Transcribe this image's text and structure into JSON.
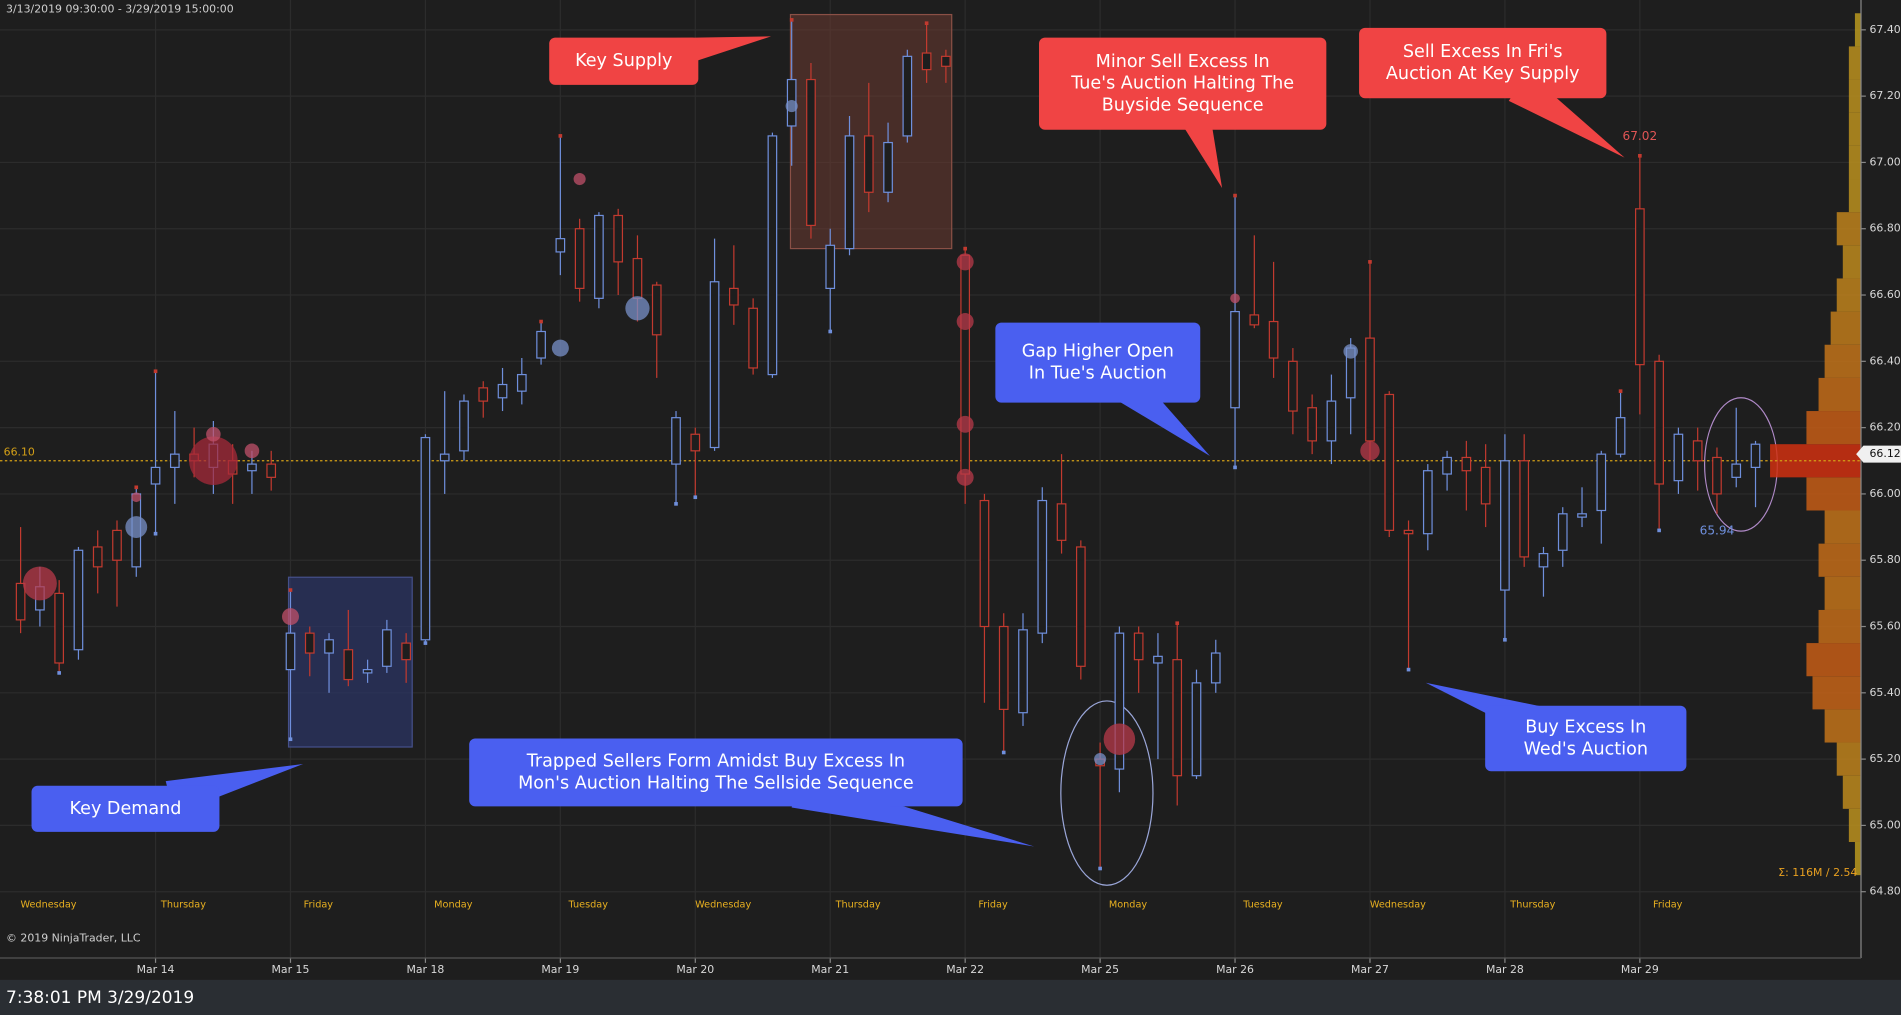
{
  "header": {
    "range": "3/13/2019 09:30:00 - 3/29/2019 15:00:00",
    "copyright": "© 2019 NinjaTrader, LLC"
  },
  "status_bar": {
    "time": "7:38:01 PM 3/29/2019"
  },
  "chart_data": {
    "type": "candlestick",
    "up_color": "#6f8fdc",
    "down_color": "#c23a2f",
    "grid": true,
    "ylim": [
      64.6,
      67.49
    ],
    "yticks": [
      {
        "value": 64.8,
        "label": "64.80"
      },
      {
        "value": 65.0,
        "label": "65.00"
      },
      {
        "value": 65.2,
        "label": "65.20"
      },
      {
        "value": 65.4,
        "label": "65.40"
      },
      {
        "value": 65.6,
        "label": "65.60"
      },
      {
        "value": 65.8,
        "label": "65.80"
      },
      {
        "value": 66.0,
        "label": "66.00"
      },
      {
        "value": 66.2,
        "label": "66.20"
      },
      {
        "value": 66.4,
        "label": "66.40"
      },
      {
        "value": 66.6,
        "label": "66.60"
      },
      {
        "value": 66.8,
        "label": "66.80"
      },
      {
        "value": 67.0,
        "label": "67.00"
      },
      {
        "value": 67.2,
        "label": "67.20"
      },
      {
        "value": 67.4,
        "label": "67.40"
      }
    ],
    "sessions": [
      "Wednesday",
      "Thursday",
      "Friday",
      "Monday",
      "Tuesday",
      "Wednesday",
      "Thursday",
      "Friday",
      "Monday",
      "Tuesday",
      "Wednesday",
      "Thursday",
      "Friday"
    ],
    "dates": [
      "Mar 14",
      "Mar 15",
      "Mar 18",
      "Mar 19",
      "Mar 20",
      "Mar 21",
      "Mar 22",
      "Mar 25",
      "Mar 26",
      "Mar 27",
      "Mar 28",
      "Mar 29"
    ],
    "open": [
      65.73,
      65.65,
      65.7,
      65.53,
      65.84,
      65.89,
      65.78,
      66.03,
      66.08,
      66.12,
      66.08,
      66.1,
      66.07,
      66.09,
      65.47,
      65.58,
      65.52,
      65.53,
      65.46,
      65.48,
      65.55,
      65.56,
      66.1,
      66.13,
      66.32,
      66.29,
      66.31,
      66.41,
      66.73,
      66.8,
      66.59,
      66.84,
      66.71,
      66.63,
      66.09,
      66.18,
      66.14,
      66.62,
      66.56,
      66.36,
      67.11,
      67.25,
      66.62,
      66.74,
      67.08,
      66.91,
      67.08,
      67.33,
      67.32,
      66.72,
      65.98,
      65.6,
      65.34,
      65.58,
      65.97,
      65.84,
      65.2,
      65.17,
      65.58,
      65.49,
      65.5,
      65.15,
      65.43,
      66.26,
      66.54,
      66.52,
      66.4,
      66.26,
      66.16,
      66.29,
      66.47,
      66.3,
      65.89,
      65.88,
      66.06,
      66.11,
      66.08,
      65.71,
      66.1,
      65.78,
      65.83,
      65.93,
      65.95,
      66.12,
      66.86,
      66.4,
      66.04,
      66.16,
      66.11,
      66.05,
      66.08
    ],
    "high": [
      65.9,
      65.78,
      65.74,
      65.84,
      65.89,
      65.92,
      66.02,
      66.37,
      66.25,
      66.2,
      66.22,
      66.15,
      66.13,
      66.13,
      65.71,
      65.6,
      65.58,
      65.65,
      65.5,
      65.62,
      65.58,
      66.18,
      66.31,
      66.3,
      66.34,
      66.38,
      66.41,
      66.52,
      67.08,
      66.83,
      66.85,
      66.86,
      66.78,
      66.64,
      66.25,
      66.2,
      66.77,
      66.75,
      66.59,
      67.09,
      67.43,
      67.3,
      66.8,
      67.14,
      67.24,
      67.12,
      67.34,
      67.42,
      67.34,
      66.74,
      66.0,
      65.64,
      65.64,
      66.02,
      66.12,
      65.86,
      65.25,
      65.6,
      65.6,
      65.58,
      65.61,
      65.47,
      65.56,
      66.9,
      66.78,
      66.7,
      66.44,
      66.3,
      66.36,
      66.47,
      66.7,
      66.31,
      65.92,
      66.09,
      66.13,
      66.16,
      66.15,
      66.18,
      66.18,
      65.84,
      65.96,
      66.02,
      66.13,
      66.31,
      67.02,
      66.42,
      66.2,
      66.2,
      66.14,
      66.26,
      66.16
    ],
    "low": [
      65.58,
      65.6,
      65.46,
      65.5,
      65.7,
      65.66,
      65.75,
      65.88,
      65.97,
      66.05,
      66.0,
      65.97,
      66.0,
      66.01,
      65.26,
      65.45,
      65.4,
      65.42,
      65.43,
      65.46,
      65.43,
      65.55,
      66.0,
      66.1,
      66.23,
      66.25,
      66.27,
      66.39,
      66.66,
      66.58,
      66.56,
      66.6,
      66.52,
      66.35,
      65.97,
      65.99,
      66.13,
      66.51,
      66.36,
      66.35,
      66.99,
      66.77,
      66.49,
      66.72,
      66.85,
      66.88,
      67.06,
      67.24,
      67.24,
      65.97,
      65.37,
      65.22,
      65.3,
      65.55,
      65.82,
      65.44,
      64.87,
      65.1,
      65.4,
      65.2,
      65.06,
      65.14,
      65.4,
      66.08,
      66.5,
      66.35,
      66.18,
      66.12,
      66.09,
      66.18,
      66.1,
      65.87,
      65.47,
      65.83,
      66.01,
      65.95,
      65.9,
      65.56,
      65.78,
      65.69,
      65.78,
      65.9,
      65.85,
      66.11,
      66.24,
      65.89,
      66.0,
      66.01,
      65.94,
      66.02,
      65.96
    ],
    "close": [
      65.62,
      65.72,
      65.49,
      65.83,
      65.78,
      65.8,
      66.0,
      66.08,
      66.12,
      66.1,
      66.15,
      66.06,
      66.09,
      66.05,
      65.58,
      65.52,
      65.56,
      65.44,
      65.47,
      65.59,
      65.5,
      66.17,
      66.12,
      66.28,
      66.28,
      66.33,
      66.36,
      66.49,
      66.77,
      66.62,
      66.84,
      66.7,
      66.59,
      66.48,
      66.23,
      66.13,
      66.64,
      66.57,
      66.38,
      67.08,
      67.25,
      66.81,
      66.75,
      67.08,
      66.91,
      67.06,
      67.32,
      67.28,
      67.29,
      66.06,
      65.6,
      65.35,
      65.59,
      65.98,
      65.86,
      65.48,
      65.18,
      65.58,
      65.5,
      65.51,
      65.15,
      65.43,
      65.52,
      66.55,
      66.51,
      66.41,
      66.25,
      66.16,
      66.28,
      66.44,
      66.16,
      65.89,
      65.88,
      66.07,
      66.11,
      66.07,
      65.97,
      66.1,
      65.81,
      65.82,
      65.94,
      65.94,
      66.12,
      66.23,
      66.39,
      66.03,
      66.18,
      66.1,
      66.0,
      66.09,
      66.15
    ],
    "bubbles": [
      {
        "bar": 1,
        "price": 65.73,
        "size": 14,
        "color": "#b8394a"
      },
      {
        "bar": 6,
        "price": 65.9,
        "size": 9,
        "color": "#7890c8"
      },
      {
        "bar": 6,
        "price": 65.99,
        "size": 4,
        "color": "#c0506a"
      },
      {
        "bar": 10,
        "price": 66.1,
        "size": 20,
        "color": "#a52a3a"
      },
      {
        "bar": 10,
        "price": 66.18,
        "size": 6,
        "color": "#c0506a"
      },
      {
        "bar": 12,
        "price": 66.13,
        "size": 6,
        "color": "#c0506a"
      },
      {
        "bar": 14,
        "price": 65.63,
        "size": 7,
        "color": "#c0506a"
      },
      {
        "bar": 28,
        "price": 66.44,
        "size": 7,
        "color": "#7890c8"
      },
      {
        "bar": 29,
        "price": 66.95,
        "size": 5,
        "color": "#c0506a"
      },
      {
        "bar": 32,
        "price": 66.56,
        "size": 10,
        "color": "#7890c8"
      },
      {
        "bar": 40,
        "price": 67.17,
        "size": 5,
        "color": "#7890c8"
      },
      {
        "bar": 49,
        "price": 66.7,
        "size": 7,
        "color": "#b8394a"
      },
      {
        "bar": 49,
        "price": 66.52,
        "size": 7,
        "color": "#b8394a"
      },
      {
        "bar": 49,
        "price": 66.21,
        "size": 7,
        "color": "#b8394a"
      },
      {
        "bar": 49,
        "price": 66.05,
        "size": 7,
        "color": "#b8394a"
      },
      {
        "bar": 56,
        "price": 65.2,
        "size": 5,
        "color": "#7890c8"
      },
      {
        "bar": 57,
        "price": 65.26,
        "size": 13,
        "color": "#b8394a"
      },
      {
        "bar": 63,
        "price": 66.59,
        "size": 4,
        "color": "#c0506a"
      },
      {
        "bar": 69,
        "price": 66.43,
        "size": 6,
        "color": "#7890c8"
      },
      {
        "bar": 70,
        "price": 66.13,
        "size": 8,
        "color": "#b8394a"
      }
    ],
    "reference_line": {
      "value": 66.1,
      "label": "66.10",
      "color": "#d4a017"
    },
    "last_price": {
      "value": 66.12,
      "label": "66.12"
    },
    "high_label": {
      "bar": 84,
      "value": 67.02,
      "label": "67.02"
    },
    "low_label": {
      "bar": 88,
      "value": 65.94,
      "label": "65.94"
    },
    "profile": {
      "prices": [
        64.9,
        65.0,
        65.1,
        65.2,
        65.3,
        65.4,
        65.5,
        65.6,
        65.7,
        65.8,
        65.9,
        66.0,
        66.1,
        66.2,
        66.3,
        66.4,
        66.5,
        66.6,
        66.7,
        66.8,
        66.9,
        67.0,
        67.1,
        67.2,
        67.3,
        67.4
      ],
      "volumes": [
        1,
        2,
        3,
        4,
        6,
        8,
        9,
        7,
        6,
        7,
        6,
        9,
        15,
        9,
        7,
        6,
        5,
        4,
        3,
        4,
        2,
        2,
        2,
        2,
        2,
        1
      ],
      "summary": "Σ: 116M / 2.54"
    },
    "annotations": [
      {
        "lines": [
          "Key Supply"
        ],
        "color": "#f04444"
      },
      {
        "lines": [
          "Minor Sell Excess In",
          "Tue's Auction Halting The",
          "Buyside Sequence"
        ],
        "color": "#f04444"
      },
      {
        "lines": [
          "Sell Excess In Fri's",
          "Auction At Key Supply"
        ],
        "color": "#f04444"
      },
      {
        "lines": [
          "Gap Higher Open",
          "In Tue's Auction"
        ],
        "color": "#4a5ff0"
      },
      {
        "lines": [
          "Key Demand"
        ],
        "color": "#4a5ff0"
      },
      {
        "lines": [
          "Trapped Sellers Form Amidst Buy Excess In",
          "Mon's Auction Halting The Sellside Sequence"
        ],
        "color": "#4a5ff0"
      },
      {
        "lines": [
          "Buy Excess In",
          "Wed's Auction"
        ],
        "color": "#4a5ff0"
      }
    ]
  }
}
